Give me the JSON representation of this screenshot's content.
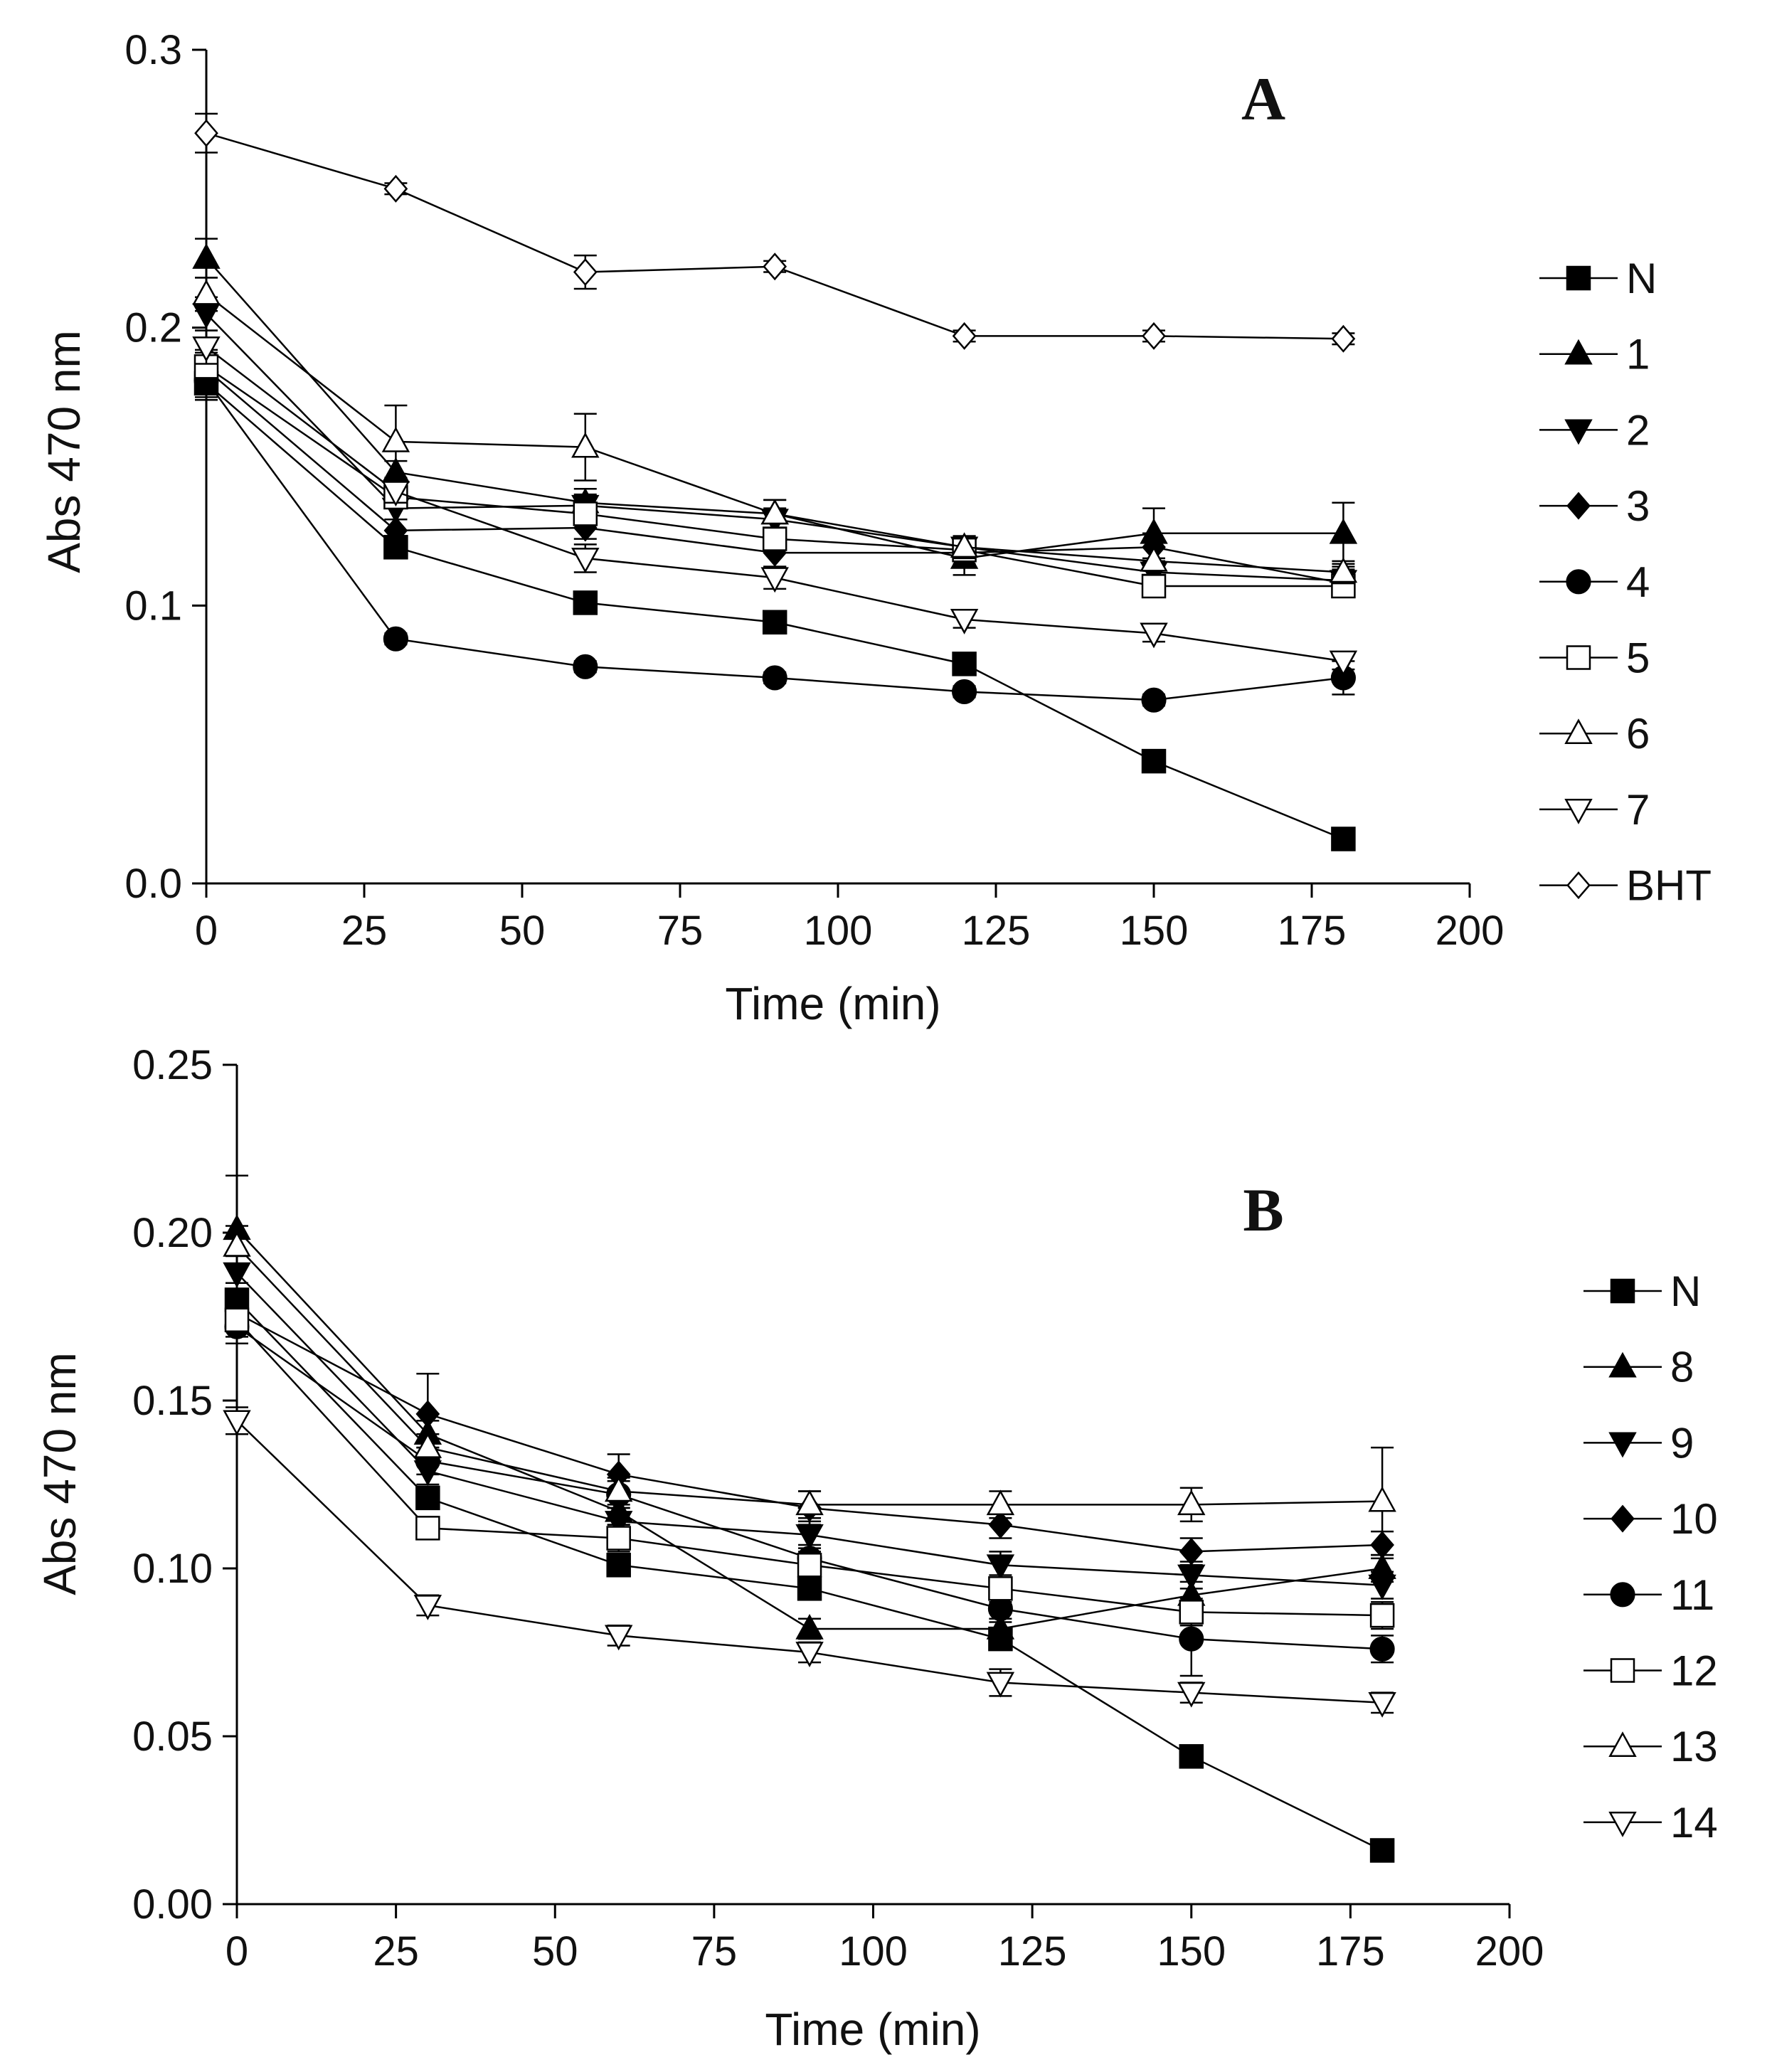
{
  "chart_data": [
    {
      "panel": "A",
      "type": "line",
      "title": "A",
      "xlabel": "Time (min)",
      "ylabel": "Abs 470 nm",
      "xlim": [
        0,
        200
      ],
      "ylim": [
        0,
        0.3
      ],
      "xticks": [
        0,
        25,
        50,
        75,
        100,
        125,
        150,
        175,
        200
      ],
      "yticks": [
        0.0,
        0.1,
        0.2,
        0.3
      ],
      "ytick_labels": [
        "0.0",
        "0.1",
        "0.2",
        "0.3"
      ],
      "grid": false,
      "legend_position": "right",
      "x": [
        0,
        30,
        60,
        90,
        120,
        150,
        180
      ],
      "series": [
        {
          "name": "N",
          "marker": "square-filled",
          "values": [
            0.18,
            0.121,
            0.101,
            0.094,
            0.079,
            0.044,
            0.016
          ],
          "errors": [
            0.006,
            0.003,
            0.003,
            0.003,
            0.003,
            0.002,
            0.002
          ]
        },
        {
          "name": "1",
          "marker": "triangle-up-filled",
          "values": [
            0.225,
            0.148,
            0.137,
            0.133,
            0.117,
            0.126,
            0.126
          ],
          "errors": [
            0.007,
            0.004,
            0.005,
            0.005,
            0.006,
            0.009,
            0.011
          ]
        },
        {
          "name": "2",
          "marker": "triangle-down-filled",
          "values": [
            0.205,
            0.135,
            0.136,
            0.131,
            0.121,
            0.112,
            0.109
          ],
          "errors": [
            0.006,
            0.004,
            0.004,
            0.004,
            0.004,
            0.004,
            0.005
          ]
        },
        {
          "name": "3",
          "marker": "diamond-filled",
          "values": [
            0.185,
            0.127,
            0.128,
            0.119,
            0.119,
            0.121,
            0.108
          ],
          "errors": [
            0.006,
            0.004,
            0.004,
            0.005,
            0.004,
            0.005,
            0.005
          ]
        },
        {
          "name": "4",
          "marker": "circle-filled",
          "values": [
            0.181,
            0.088,
            0.078,
            0.074,
            0.069,
            0.066,
            0.074
          ],
          "errors": [
            0.006,
            0.002,
            0.002,
            0.002,
            0.002,
            0.002,
            0.006
          ]
        },
        {
          "name": "5",
          "marker": "square-open",
          "values": [
            0.186,
            0.139,
            0.133,
            0.124,
            0.12,
            0.107,
            0.107
          ],
          "errors": [
            0.006,
            0.004,
            0.004,
            0.004,
            0.004,
            0.004,
            0.004
          ]
        },
        {
          "name": "6",
          "marker": "triangle-up-open",
          "values": [
            0.212,
            0.159,
            0.157,
            0.133,
            0.121,
            0.116,
            0.112
          ],
          "errors": [
            0.006,
            0.013,
            0.012,
            0.005,
            0.004,
            0.005,
            0.004
          ]
        },
        {
          "name": "7",
          "marker": "triangle-down-open",
          "values": [
            0.193,
            0.141,
            0.117,
            0.11,
            0.095,
            0.09,
            0.08
          ],
          "errors": [
            0.006,
            0.004,
            0.005,
            0.004,
            0.003,
            0.003,
            0.003
          ]
        },
        {
          "name": "BHT",
          "marker": "diamond-open",
          "values": [
            0.27,
            0.25,
            0.22,
            0.222,
            0.197,
            0.197,
            0.196
          ],
          "errors": [
            0.007,
            0.002,
            0.006,
            0.002,
            0.002,
            0.002,
            0.002
          ]
        }
      ]
    },
    {
      "panel": "B",
      "type": "line",
      "title": "B",
      "xlabel": "Time (min)",
      "ylabel": "Abs 470 nm",
      "xlim": [
        0,
        200
      ],
      "ylim": [
        0,
        0.25
      ],
      "xticks": [
        0,
        25,
        50,
        75,
        100,
        125,
        150,
        175,
        200
      ],
      "yticks": [
        0.0,
        0.05,
        0.1,
        0.15,
        0.2,
        0.25
      ],
      "ytick_labels": [
        "0.00",
        "0.05",
        "0.10",
        "0.15",
        "0.20",
        "0.25"
      ],
      "grid": false,
      "legend_position": "right",
      "x": [
        0,
        30,
        60,
        90,
        120,
        150,
        180
      ],
      "series": [
        {
          "name": "N",
          "marker": "square-filled",
          "values": [
            0.18,
            0.121,
            0.101,
            0.094,
            0.079,
            0.044,
            0.016
          ],
          "errors": [
            0.005,
            0.003,
            0.003,
            0.003,
            0.003,
            0.002,
            0.002
          ]
        },
        {
          "name": "8",
          "marker": "triangle-up-filled",
          "values": [
            0.201,
            0.14,
            0.117,
            0.082,
            0.082,
            0.092,
            0.1
          ],
          "errors": [
            0.016,
            0.004,
            0.004,
            0.003,
            0.003,
            0.004,
            0.004
          ]
        },
        {
          "name": "9",
          "marker": "triangle-down-filled",
          "values": [
            0.188,
            0.129,
            0.114,
            0.11,
            0.101,
            0.098,
            0.095
          ],
          "errors": [
            0.005,
            0.004,
            0.004,
            0.004,
            0.004,
            0.004,
            0.004
          ]
        },
        {
          "name": "10",
          "marker": "diamond-filled",
          "values": [
            0.176,
            0.146,
            0.128,
            0.118,
            0.113,
            0.105,
            0.107
          ],
          "errors": [
            0.005,
            0.012,
            0.006,
            0.005,
            0.004,
            0.004,
            0.004
          ]
        },
        {
          "name": "11",
          "marker": "circle-filled",
          "values": [
            0.172,
            0.132,
            0.122,
            0.103,
            0.088,
            0.079,
            0.076
          ],
          "errors": [
            0.005,
            0.004,
            0.004,
            0.004,
            0.004,
            0.011,
            0.004
          ]
        },
        {
          "name": "12",
          "marker": "square-open",
          "values": [
            0.174,
            0.112,
            0.109,
            0.101,
            0.094,
            0.087,
            0.086
          ],
          "errors": [
            0.005,
            0.003,
            0.004,
            0.004,
            0.004,
            0.004,
            0.004
          ]
        },
        {
          "name": "13",
          "marker": "triangle-up-open",
          "values": [
            0.196,
            0.136,
            0.123,
            0.119,
            0.119,
            0.119,
            0.12
          ],
          "errors": [
            0.006,
            0.004,
            0.004,
            0.004,
            0.004,
            0.005,
            0.016
          ]
        },
        {
          "name": "14",
          "marker": "triangle-down-open",
          "values": [
            0.144,
            0.089,
            0.08,
            0.075,
            0.066,
            0.063,
            0.06
          ],
          "errors": [
            0.004,
            0.003,
            0.003,
            0.003,
            0.004,
            0.003,
            0.003
          ]
        }
      ]
    }
  ]
}
